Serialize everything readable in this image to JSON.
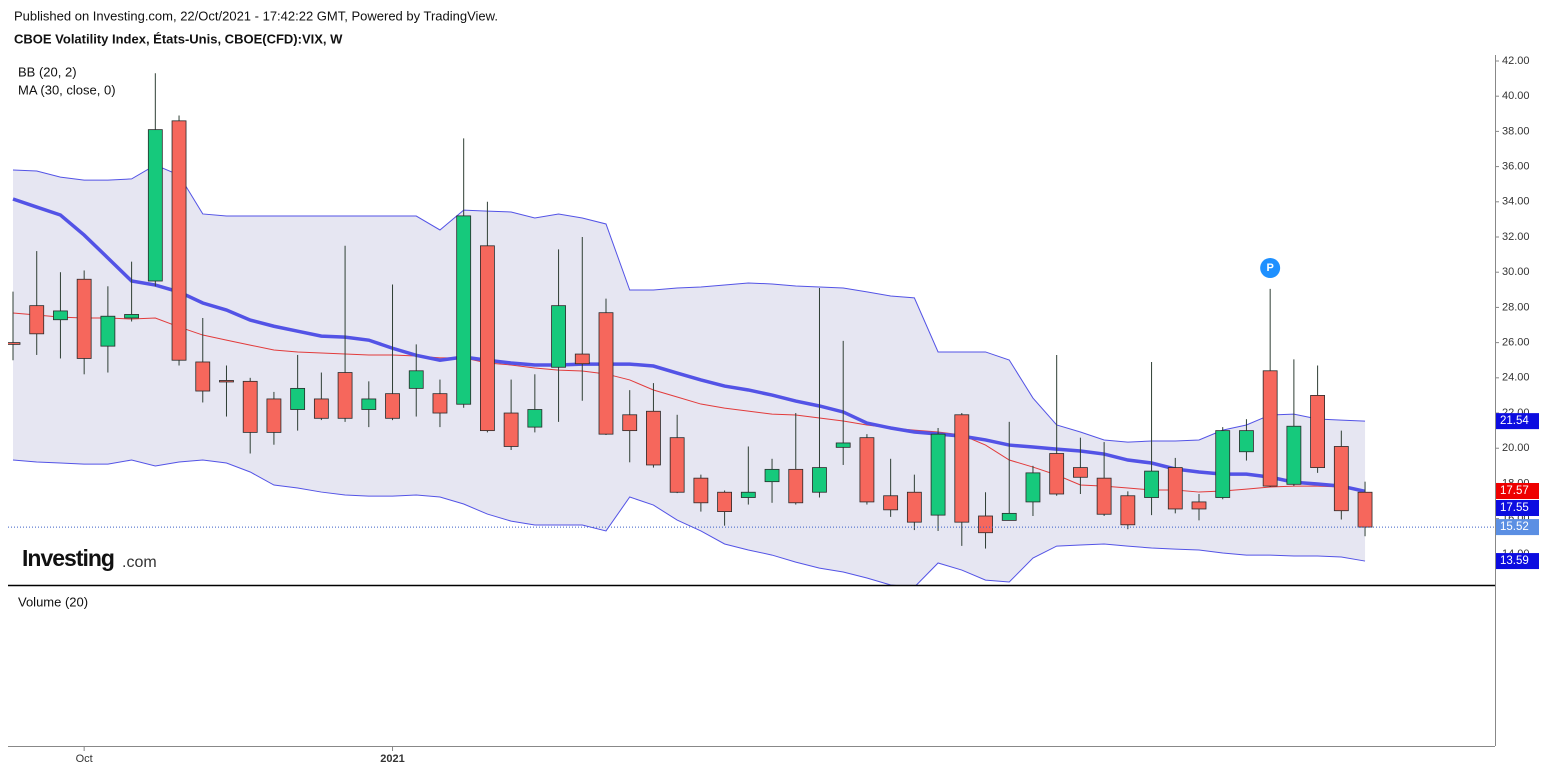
{
  "chart_data": {
    "type": "candlestick",
    "published": "Published on Investing.com, 22/Oct/2021 - 17:42:22 GMT, Powered by TradingView.",
    "title": "CBOE Volatility Index, États-Unis, CBOE(CFD):VIX, W",
    "volume_label": "Volume (20)",
    "logo": {
      "name": "Investing",
      "suffix": ".com"
    },
    "annotations": [
      "P"
    ],
    "up_color": "#16c97c",
    "down_color": "#f6675c",
    "wick_color": "#2f3f35",
    "last_price_color": "#5b8fe3",
    "categories": [
      null,
      null,
      null,
      "Oct",
      null,
      null,
      null,
      null,
      null,
      null,
      null,
      null,
      null,
      null,
      null,
      null,
      "2021",
      null,
      null,
      null,
      null,
      null,
      null,
      null,
      null,
      null,
      null,
      null,
      null,
      null,
      null,
      null,
      null,
      null,
      null,
      null,
      null,
      null,
      null,
      null,
      null,
      null,
      null,
      null,
      null,
      null,
      null,
      null,
      null,
      null,
      null,
      null,
      null,
      null,
      null,
      null,
      null,
      null
    ],
    "open": [
      26.0,
      28.1,
      27.3,
      29.6,
      25.8,
      27.4,
      29.5,
      38.6,
      24.9,
      23.85,
      23.8,
      22.8,
      22.2,
      22.8,
      24.3,
      22.2,
      23.1,
      23.4,
      23.1,
      22.5,
      31.5,
      22.0,
      21.2,
      24.6,
      25.35,
      27.7,
      21.9,
      22.1,
      20.6,
      18.3,
      17.5,
      17.2,
      18.1,
      18.8,
      17.5,
      20.05,
      20.6,
      17.3,
      17.5,
      16.2,
      21.9,
      16.15,
      15.9,
      16.95,
      19.7,
      18.9,
      18.3,
      17.3,
      17.2,
      18.9,
      16.95,
      17.2,
      19.8,
      24.4,
      17.95,
      23.0,
      20.1,
      17.5
    ],
    "high": [
      28.9,
      31.2,
      30.0,
      30.1,
      29.2,
      30.6,
      41.3,
      38.9,
      27.4,
      24.7,
      24.0,
      23.2,
      25.3,
      24.3,
      31.5,
      23.8,
      29.3,
      25.9,
      23.9,
      37.6,
      34.0,
      23.9,
      24.2,
      31.3,
      32.0,
      28.5,
      23.3,
      23.7,
      21.9,
      18.5,
      17.6,
      20.1,
      19.4,
      22.0,
      29.1,
      26.1,
      20.8,
      19.4,
      18.5,
      21.15,
      22.0,
      17.5,
      21.5,
      19.0,
      25.3,
      20.6,
      20.35,
      17.55,
      24.9,
      19.45,
      17.4,
      21.2,
      21.65,
      29.05,
      25.05,
      24.7,
      21.0,
      18.1
    ],
    "low": [
      25.0,
      25.3,
      25.1,
      24.2,
      24.3,
      27.2,
      29.2,
      24.7,
      22.6,
      21.8,
      19.7,
      20.2,
      21.0,
      21.6,
      21.5,
      21.2,
      21.6,
      21.8,
      21.2,
      22.3,
      20.9,
      19.9,
      20.9,
      21.5,
      22.7,
      20.75,
      19.2,
      18.9,
      17.45,
      16.4,
      15.6,
      16.8,
      16.9,
      16.8,
      17.2,
      19.05,
      16.8,
      16.1,
      15.35,
      15.3,
      14.45,
      14.3,
      15.9,
      16.15,
      17.3,
      17.4,
      16.15,
      15.4,
      16.2,
      16.3,
      15.9,
      17.1,
      19.3,
      17.8,
      17.85,
      18.6,
      15.95,
      15.0
    ],
    "close": [
      25.9,
      26.5,
      27.8,
      25.1,
      27.5,
      27.6,
      38.1,
      25.0,
      23.25,
      23.8,
      20.9,
      20.9,
      23.4,
      21.7,
      21.7,
      22.8,
      21.7,
      24.4,
      22.0,
      33.2,
      21.0,
      20.1,
      22.2,
      28.1,
      24.8,
      20.8,
      21.0,
      19.05,
      17.5,
      16.9,
      16.4,
      17.5,
      18.8,
      16.9,
      18.9,
      20.3,
      16.95,
      16.5,
      15.8,
      20.8,
      15.8,
      15.2,
      16.3,
      18.6,
      17.4,
      18.35,
      16.25,
      15.65,
      18.7,
      16.55,
      16.55,
      21.0,
      21.0,
      17.85,
      21.25,
      18.9,
      16.45,
      15.52
    ],
    "series": [
      {
        "name": "BB (20, 2)",
        "color": "#5353e6",
        "fill": "#e6e6f2",
        "label_color": "#0c0ce0",
        "upper": [
          35.81,
          35.75,
          35.4,
          35.23,
          35.23,
          35.3,
          36.09,
          35.52,
          33.31,
          33.19,
          33.19,
          33.19,
          33.19,
          33.19,
          33.19,
          33.19,
          33.19,
          33.19,
          32.4,
          33.53,
          33.47,
          33.42,
          33.08,
          33.31,
          33.08,
          32.74,
          28.99,
          28.99,
          29.1,
          29.16,
          29.27,
          29.39,
          29.33,
          29.22,
          29.16,
          29.1,
          28.88,
          28.65,
          28.54,
          25.47,
          25.47,
          25.47,
          25.01,
          22.85,
          21.32,
          20.92,
          20.47,
          20.35,
          20.41,
          20.41,
          20.47,
          21.03,
          21.32,
          21.89,
          21.94,
          21.66,
          21.6,
          21.54
        ],
        "basis": [
          34.16,
          33.7,
          33.25,
          32.11,
          30.81,
          29.5,
          29.27,
          28.88,
          28.25,
          27.85,
          27.28,
          26.93,
          26.65,
          26.37,
          26.31,
          26.14,
          25.68,
          25.28,
          25.0,
          25.18,
          25.0,
          24.84,
          24.73,
          24.73,
          24.78,
          24.78,
          24.78,
          24.67,
          24.27,
          23.88,
          23.53,
          23.31,
          23.02,
          22.68,
          22.4,
          22.06,
          21.43,
          21.15,
          20.92,
          20.81,
          20.69,
          20.47,
          20.18,
          20.07,
          19.95,
          19.84,
          19.67,
          19.33,
          19.16,
          18.82,
          18.65,
          18.53,
          18.53,
          18.36,
          18.07,
          17.97,
          17.85,
          17.55
        ],
        "lower": [
          19.33,
          19.22,
          19.16,
          19.1,
          19.1,
          19.33,
          18.99,
          19.22,
          19.33,
          19.16,
          18.65,
          17.91,
          17.74,
          17.51,
          17.34,
          17.28,
          17.28,
          17.34,
          17.23,
          16.83,
          16.26,
          15.86,
          15.64,
          15.64,
          15.64,
          15.3,
          17.23,
          16.77,
          15.92,
          15.3,
          14.56,
          14.22,
          13.93,
          13.53,
          13.19,
          12.97,
          12.63,
          12.23,
          12.11,
          13.48,
          13.08,
          12.51,
          12.4,
          13.76,
          14.44,
          14.5,
          14.56,
          14.44,
          14.33,
          14.27,
          14.22,
          14.05,
          13.93,
          13.93,
          13.88,
          13.88,
          13.82,
          13.59
        ]
      },
      {
        "name": "MA (30, close, 0)",
        "color": "#e23b3b",
        "label_color": "#ee0000",
        "values": [
          27.68,
          27.57,
          27.45,
          27.4,
          27.4,
          27.34,
          27.4,
          26.89,
          26.43,
          26.14,
          25.86,
          25.58,
          25.47,
          25.41,
          25.35,
          25.3,
          25.3,
          25.24,
          25.13,
          25.13,
          24.84,
          24.73,
          24.56,
          24.44,
          24.39,
          24.22,
          23.88,
          23.31,
          22.91,
          22.51,
          22.28,
          22.11,
          21.94,
          21.89,
          21.72,
          21.55,
          21.32,
          21.15,
          21.03,
          20.92,
          20.75,
          20.18,
          19.33,
          18.93,
          18.48,
          17.91,
          17.85,
          17.74,
          17.63,
          17.63,
          17.51,
          17.57,
          17.68,
          17.8,
          17.85,
          17.85,
          17.8,
          17.57
        ]
      }
    ],
    "ylim": [
      12.23,
      42.34
    ],
    "yticks": [
      {
        "value": 14,
        "label": "14.00"
      },
      {
        "value": 16,
        "label": "16.00"
      },
      {
        "value": 18,
        "label": "18.00"
      },
      {
        "value": 20,
        "label": "20.00"
      },
      {
        "value": 22,
        "label": "22.00"
      },
      {
        "value": 24,
        "label": "24.00"
      },
      {
        "value": 26,
        "label": "26.00"
      },
      {
        "value": 28,
        "label": "28.00"
      },
      {
        "value": 30,
        "label": "30.00"
      },
      {
        "value": 32,
        "label": "32.00"
      },
      {
        "value": 34,
        "label": "34.00"
      },
      {
        "value": 36,
        "label": "36.00"
      },
      {
        "value": 38,
        "label": "38.00"
      },
      {
        "value": 40,
        "label": "40.00"
      },
      {
        "value": 42,
        "label": "42.00"
      }
    ]
  }
}
